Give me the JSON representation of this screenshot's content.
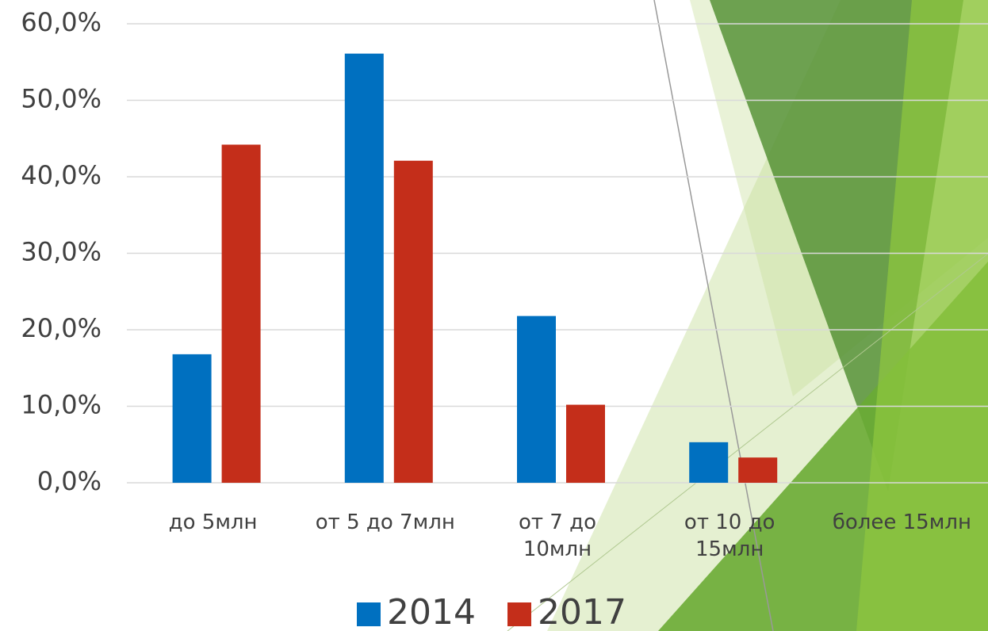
{
  "chart_data": {
    "type": "bar",
    "categories": [
      "до 5млн",
      "от 5 до 7млн",
      "от 7 до 10млн",
      "от 10 до 15млн",
      "более 15млн"
    ],
    "series": [
      {
        "name": "2014",
        "color": "#0070c0",
        "values": [
          16.8,
          56.1,
          21.8,
          5.3,
          null
        ]
      },
      {
        "name": "2017",
        "color": "#c42e1a",
        "values": [
          44.2,
          42.1,
          10.2,
          3.3,
          null
        ]
      }
    ],
    "ylim": [
      0,
      60
    ],
    "yticks": [
      {
        "value": 0,
        "label": "0,0%"
      },
      {
        "value": 10,
        "label": "10,0%"
      },
      {
        "value": 20,
        "label": "20,0%"
      },
      {
        "value": 30,
        "label": "30,0%"
      },
      {
        "value": 40,
        "label": "40,0%"
      },
      {
        "value": 50,
        "label": "50,0%"
      },
      {
        "value": 60,
        "label": "60,0%"
      }
    ],
    "grid": true,
    "legend": "bottom"
  }
}
